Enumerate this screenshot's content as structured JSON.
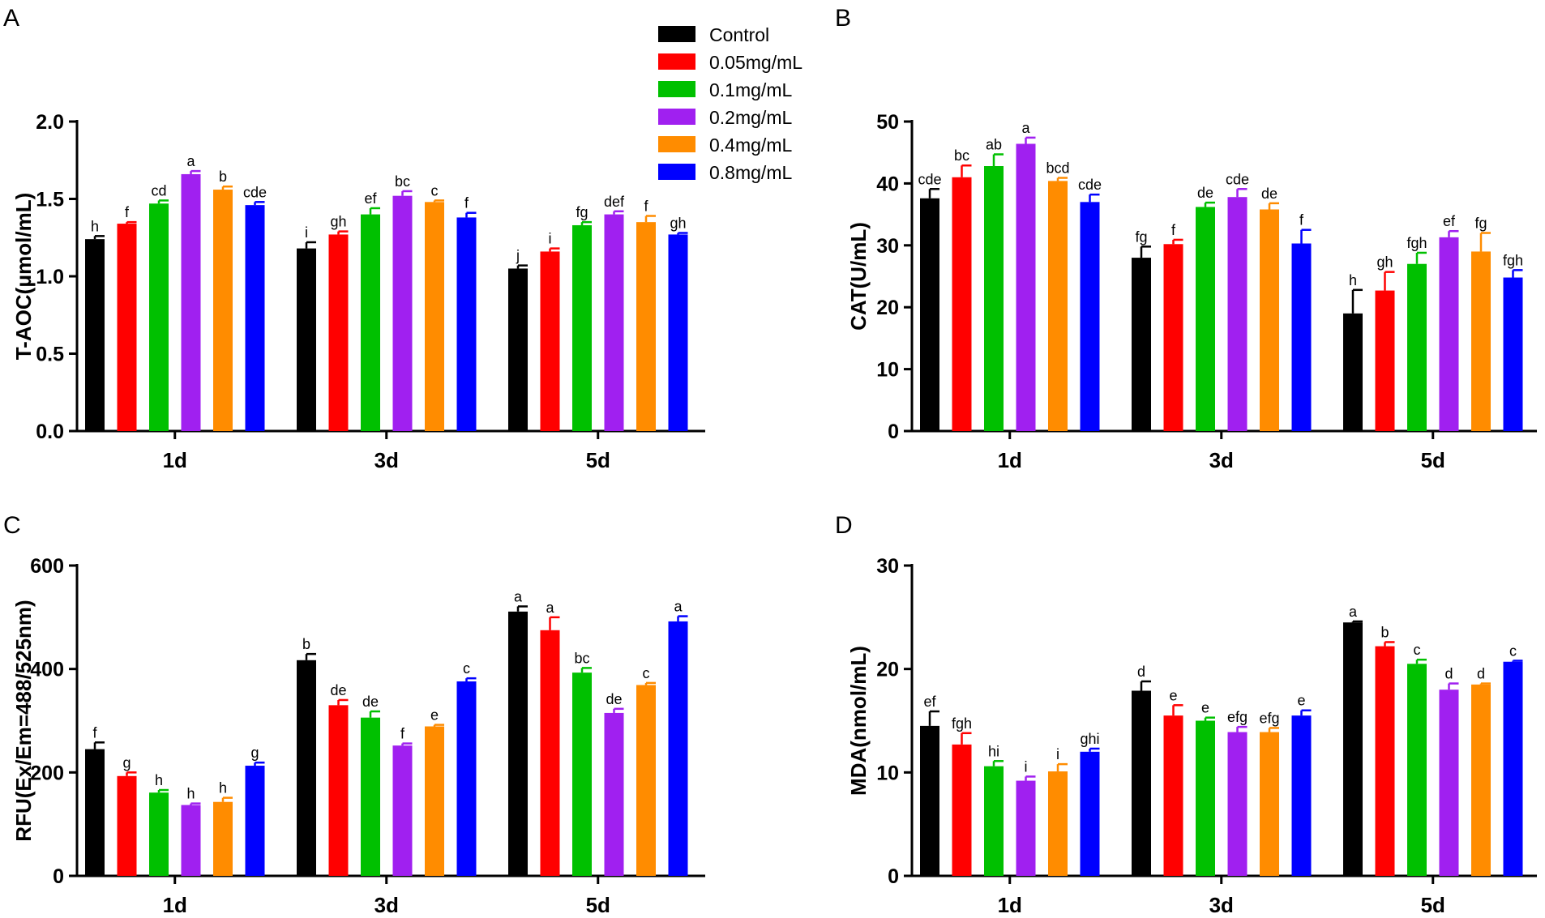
{
  "legend": {
    "items": [
      {
        "label": "Control",
        "color": "#000000"
      },
      {
        "label": "0.05mg/mL",
        "color": "#ff0000"
      },
      {
        "label": "0.1mg/mL",
        "color": "#00c000"
      },
      {
        "label": "0.2mg/mL",
        "color": "#a020f0"
      },
      {
        "label": "0.4mg/mL",
        "color": "#ff8c00"
      },
      {
        "label": "0.8mg/mL",
        "color": "#0000ff"
      }
    ]
  },
  "chart_data": [
    {
      "panel": "A",
      "type": "bar",
      "ylabel": "T-AOC(μmol/mL)",
      "ylim": [
        0,
        2.0
      ],
      "yticks": [
        "0.0",
        "0.5",
        "1.0",
        "1.5",
        "2.0"
      ],
      "categories": [
        "1d",
        "3d",
        "5d"
      ],
      "series_names": [
        "Control",
        "0.05mg/mL",
        "0.1mg/mL",
        "0.2mg/mL",
        "0.4mg/mL",
        "0.8mg/mL"
      ],
      "values": [
        [
          1.24,
          1.34,
          1.47,
          1.66,
          1.56,
          1.46
        ],
        [
          1.18,
          1.27,
          1.4,
          1.52,
          1.48,
          1.38
        ],
        [
          1.05,
          1.16,
          1.33,
          1.4,
          1.35,
          1.27
        ]
      ],
      "errors": [
        [
          0.02,
          0.01,
          0.02,
          0.02,
          0.02,
          0.02
        ],
        [
          0.04,
          0.02,
          0.04,
          0.03,
          0.01,
          0.03
        ],
        [
          0.02,
          0.02,
          0.02,
          0.02,
          0.04,
          0.01
        ]
      ],
      "letters": [
        [
          "h",
          "f",
          "cd",
          "a",
          "b",
          "cde"
        ],
        [
          "i",
          "gh",
          "ef",
          "bc",
          "c",
          "f"
        ],
        [
          "j",
          "i",
          "fg",
          "def",
          "f",
          "gh"
        ]
      ]
    },
    {
      "panel": "B",
      "type": "bar",
      "ylabel": "CAT(U/mL)",
      "ylim": [
        0,
        50
      ],
      "yticks": [
        "0",
        "10",
        "20",
        "30",
        "40",
        "50"
      ],
      "categories": [
        "1d",
        "3d",
        "5d"
      ],
      "series_names": [
        "Control",
        "0.05mg/mL",
        "0.1mg/mL",
        "0.2mg/mL",
        "0.4mg/mL",
        "0.8mg/mL"
      ],
      "values": [
        [
          37.6,
          41.0,
          42.8,
          46.4,
          40.4,
          37.0
        ],
        [
          28.0,
          30.2,
          36.2,
          37.8,
          35.8,
          30.3
        ],
        [
          19.0,
          22.7,
          27.0,
          31.3,
          29.0,
          24.8
        ]
      ],
      "errors": [
        [
          1.5,
          1.9,
          1.9,
          1.0,
          0.5,
          1.2
        ],
        [
          1.8,
          0.7,
          0.7,
          1.3,
          1.0,
          2.2
        ],
        [
          3.8,
          3.0,
          1.8,
          1.0,
          3.0,
          1.2
        ]
      ],
      "letters": [
        [
          "cde",
          "bc",
          "ab",
          "a",
          "bcd",
          "cde"
        ],
        [
          "fg",
          "f",
          "de",
          "cde",
          "de",
          "f"
        ],
        [
          "h",
          "gh",
          "fgh",
          "ef",
          "fg",
          "fgh"
        ]
      ]
    },
    {
      "panel": "C",
      "type": "bar",
      "ylabel": "RFU(Ex/Em=488/525nm)",
      "ylim": [
        0,
        600
      ],
      "yticks": [
        "0",
        "200",
        "400",
        "600"
      ],
      "categories": [
        "1d",
        "3d",
        "5d"
      ],
      "series_names": [
        "Control",
        "0.05mg/mL",
        "0.1mg/mL",
        "0.2mg/mL",
        "0.4mg/mL",
        "0.8mg/mL"
      ],
      "values": [
        [
          245,
          193,
          161,
          137,
          143,
          213
        ],
        [
          417,
          330,
          306,
          252,
          289,
          376
        ],
        [
          511,
          475,
          393,
          315,
          369,
          492
        ]
      ],
      "errors": [
        [
          13,
          7,
          5,
          3,
          8,
          6
        ],
        [
          12,
          10,
          12,
          4,
          3,
          6
        ],
        [
          10,
          25,
          9,
          8,
          4,
          10
        ]
      ],
      "letters": [
        [
          "f",
          "g",
          "h",
          "h",
          "h",
          "g"
        ],
        [
          "b",
          "de",
          "de",
          "f",
          "e",
          "c"
        ],
        [
          "a",
          "a",
          "bc",
          "de",
          "c",
          "a"
        ]
      ]
    },
    {
      "panel": "D",
      "type": "bar",
      "ylabel": "MDA(nmol/mL)",
      "ylim": [
        0,
        30
      ],
      "yticks": [
        "0",
        "10",
        "20",
        "30"
      ],
      "categories": [
        "1d",
        "3d",
        "5d"
      ],
      "series_names": [
        "Control",
        "0.05mg/mL",
        "0.1mg/mL",
        "0.2mg/mL",
        "0.4mg/mL",
        "0.8mg/mL"
      ],
      "values": [
        [
          14.5,
          12.7,
          10.6,
          9.2,
          10.1,
          12.0
        ],
        [
          17.9,
          15.5,
          15.0,
          13.9,
          13.9,
          15.5
        ],
        [
          24.5,
          22.2,
          20.5,
          18.0,
          18.5,
          20.7
        ]
      ],
      "errors": [
        [
          1.4,
          1.1,
          0.5,
          0.4,
          0.7,
          0.3
        ],
        [
          0.9,
          1.0,
          0.3,
          0.5,
          0.4,
          0.5
        ],
        [
          0.1,
          0.4,
          0.4,
          0.6,
          0.1,
          0.1
        ]
      ],
      "letters": [
        [
          "ef",
          "fgh",
          "hi",
          "i",
          "i",
          "ghi"
        ],
        [
          "d",
          "e",
          "e",
          "efg",
          "efg",
          "e"
        ],
        [
          "a",
          "b",
          "c",
          "d",
          "d",
          "c"
        ]
      ]
    }
  ]
}
